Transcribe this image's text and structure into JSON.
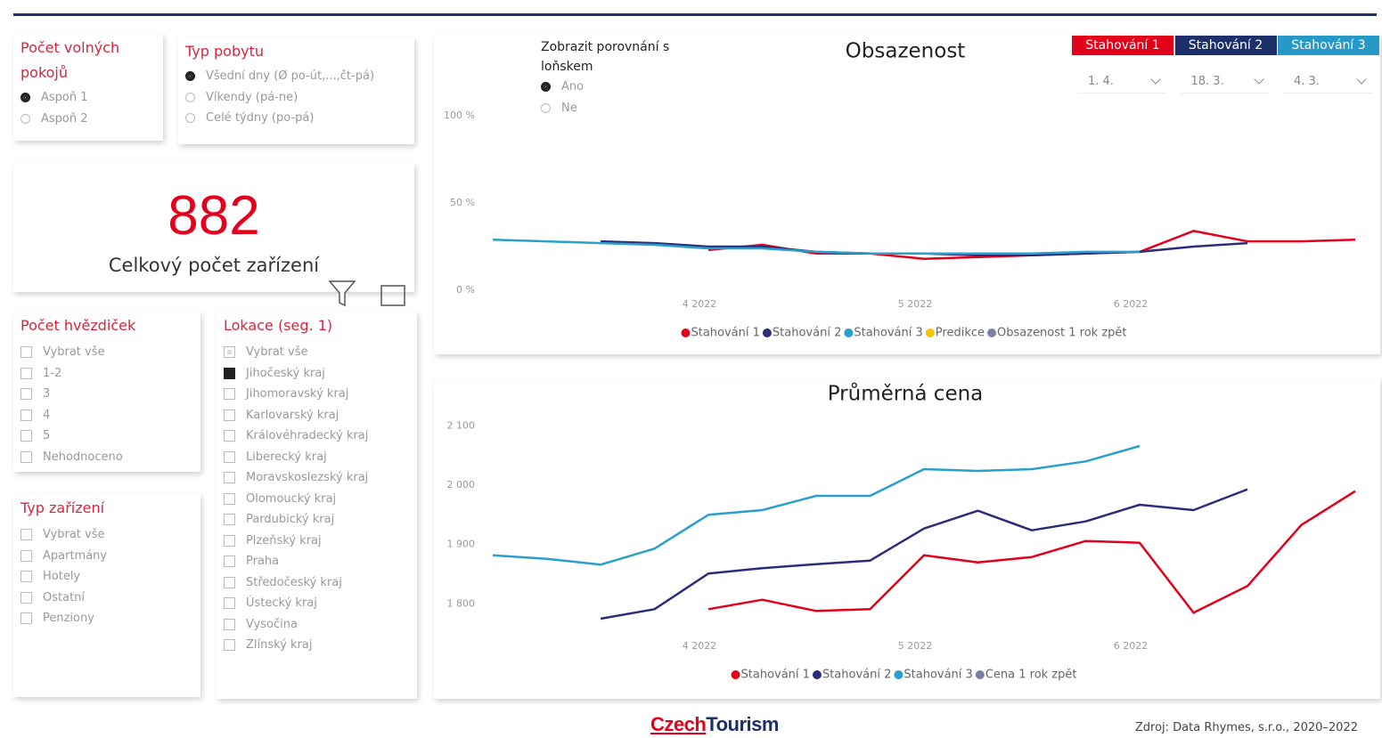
{
  "slicers": [
    {
      "title": "Počet volných pokojů",
      "kind": "radio",
      "items": [
        "Aspoň 1",
        "Aspoň 2"
      ],
      "selected": 0
    },
    {
      "title": "Typ pobytu",
      "kind": "radio",
      "items": [
        "Všední dny (Ø po-út,...,čt-pá)",
        "Víkendy (pá-ne)",
        "Celé týdny (po-pá)"
      ],
      "selected": 0
    },
    {
      "title": "Zobrazit porovnání s loňskem",
      "kind": "radio",
      "items": [
        "Ano",
        "Ne"
      ],
      "selected": 0
    },
    {
      "title": "Počet hvězdiček",
      "kind": "checkbox",
      "items": [
        "Vybrat vše",
        "1-2",
        "3",
        "4",
        "5",
        "Nehodnoceno"
      ],
      "checked": []
    },
    {
      "title": "Typ zařízení",
      "kind": "checkbox",
      "items": [
        "Vybrat vše",
        "Apartmány",
        "Hotely",
        "Ostatní",
        "Penziony"
      ],
      "checked": []
    },
    {
      "title": "Lokace (seg. 1)",
      "kind": "checkbox",
      "items": [
        "Vybrat vše",
        "Jihočeský kraj",
        "Jihomoravský kraj",
        "Karlovarský kraj",
        "Královéhradecký kraj",
        "Liberecký kraj",
        "Moravskoslezský kraj",
        "Olomoucký kraj",
        "Pardubický kraj",
        "Plzeňský kraj",
        "Praha",
        "Středočeský kraj",
        "Ústecký kraj",
        "Vysočina",
        "Zlínský kraj"
      ],
      "checked": [
        1
      ],
      "partial": [
        0
      ]
    }
  ],
  "kpi": {
    "value": 882,
    "label": "Celkový počet zařízení"
  },
  "downloads": [
    {
      "name": "Stahování 1",
      "date": "1. 4.",
      "color": "#e3001b"
    },
    {
      "name": "Stahování 2",
      "date": "18. 3.",
      "color": "#1c2f6b"
    },
    {
      "name": "Stahování 3",
      "date": "4. 3.",
      "color": "#2799c9"
    }
  ],
  "chart_data": [
    {
      "type": "line",
      "title": "Obsazenost",
      "categories": [
        null,
        null,
        null,
        null,
        "4 2022",
        null,
        null,
        null,
        "5 2022",
        null,
        null,
        null,
        "6 2022",
        null,
        null,
        null,
        null
      ],
      "ylim": [
        0,
        100
      ],
      "yticks": [
        {
          "value": 0,
          "label": "0 %"
        },
        {
          "value": 50,
          "label": "50 %"
        },
        {
          "value": 100,
          "label": "100 %"
        }
      ],
      "series": [
        {
          "name": "Stahování 1",
          "color": "#e3001b",
          "values": [
            null,
            null,
            null,
            null,
            23,
            26,
            21,
            21,
            18,
            19,
            20,
            21,
            22,
            34,
            28,
            28,
            29
          ]
        },
        {
          "name": "Stahování 2",
          "color": "#2b2d7a",
          "values": [
            null,
            null,
            28,
            27,
            25,
            25,
            22,
            21,
            21,
            20,
            20,
            21,
            22,
            25,
            27,
            null,
            null
          ]
        },
        {
          "name": "Stahování 3",
          "color": "#2a9fcc",
          "values": [
            29,
            28,
            27,
            26,
            24,
            24,
            22,
            21,
            21,
            21,
            21,
            22,
            22,
            null,
            null,
            null,
            null
          ]
        },
        {
          "name": "Predikce",
          "color": "#f5c400",
          "values": [
            null,
            null,
            null,
            null,
            null,
            null,
            null,
            null,
            null,
            null,
            null,
            null,
            null,
            null,
            null,
            null,
            null
          ]
        },
        {
          "name": "Obsazenost 1 rok zpět",
          "color": "#7a7fa8",
          "values": [
            null,
            null,
            null,
            null,
            null,
            null,
            null,
            null,
            null,
            null,
            null,
            null,
            null,
            null,
            null,
            null,
            null
          ]
        }
      ]
    },
    {
      "type": "line",
      "title": "Průměrná cena",
      "categories": [
        null,
        null,
        null,
        null,
        "4 2022",
        null,
        null,
        null,
        "5 2022",
        null,
        null,
        null,
        "6 2022",
        null,
        null,
        null,
        null
      ],
      "ylim": [
        1760,
        2120
      ],
      "yticks": [
        {
          "value": 1800,
          "label": "1 800"
        },
        {
          "value": 1900,
          "label": "1 900"
        },
        {
          "value": 2000,
          "label": "2 000"
        },
        {
          "value": 2100,
          "label": "2 100"
        }
      ],
      "series": [
        {
          "name": "Stahování 1",
          "color": "#e3001b",
          "values": [
            null,
            null,
            null,
            null,
            1791,
            1807,
            1788,
            1791,
            1882,
            1870,
            1879,
            1906,
            1903,
            1785,
            1830,
            1933,
            1990
          ]
        },
        {
          "name": "Stahování 2",
          "color": "#2b2d7a",
          "values": [
            null,
            null,
            1775,
            1791,
            1851,
            1860,
            1867,
            1873,
            1927,
            1957,
            1924,
            1939,
            1967,
            1958,
            1993,
            null,
            null
          ]
        },
        {
          "name": "Stahování 3",
          "color": "#2a9fcc",
          "values": [
            1882,
            1876,
            1866,
            1893,
            1950,
            1958,
            1982,
            1982,
            2027,
            2024,
            2027,
            2040,
            2066,
            null,
            null,
            null,
            null
          ]
        },
        {
          "name": "Cena 1 rok zpět",
          "color": "#7a7fa8",
          "values": [
            null,
            null,
            null,
            null,
            null,
            null,
            null,
            null,
            null,
            null,
            null,
            null,
            null,
            null,
            null,
            null,
            null
          ]
        }
      ]
    }
  ],
  "footer": {
    "logo_a": "Czech",
    "logo_b": "Tourism",
    "source": "Zdroj: Data Rhymes, s.r.o., 2020–2022"
  }
}
